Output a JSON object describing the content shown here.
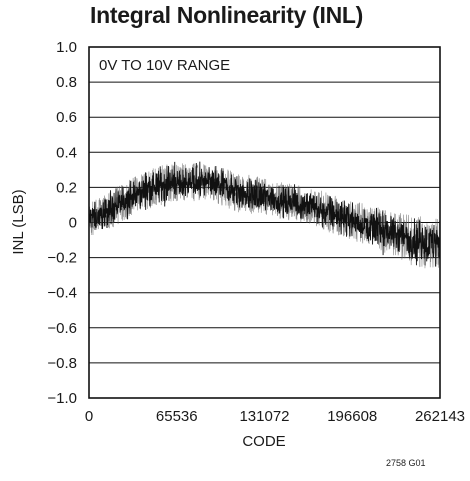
{
  "figure_id": "2758 G01",
  "chart_data": {
    "type": "line",
    "title": "Integral Nonlinearity (INL)",
    "xlabel": "CODE",
    "ylabel": "INL (LSB)",
    "annotation": "0V TO 10V RANGE",
    "xlim": [
      0,
      262143
    ],
    "ylim": [
      -1.0,
      1.0
    ],
    "x_ticks": [
      0,
      65536,
      131072,
      196608,
      262143
    ],
    "x_tick_labels": [
      "0",
      "65536",
      "131072",
      "196608",
      "262143"
    ],
    "y_ticks": [
      1.0,
      0.8,
      0.6,
      0.4,
      0.2,
      0,
      -0.2,
      -0.4,
      -0.6,
      -0.8,
      -1.0
    ],
    "y_tick_labels": [
      "1.0",
      "0.8",
      "0.6",
      "0.4",
      "0.2",
      "0",
      "−0.2",
      "−0.4",
      "−0.6",
      "−0.8",
      "−1.0"
    ],
    "grid": "horizontal",
    "series": [
      {
        "color": "#111111",
        "envelope": {
          "x": [
            0,
            10000,
            20000,
            32768,
            45000,
            55000,
            65536,
            80000,
            98304,
            110000,
            131072,
            145000,
            163840,
            180000,
            196608,
            210000,
            229376,
            245000,
            262143
          ],
          "upper": [
            0.12,
            0.15,
            0.2,
            0.26,
            0.31,
            0.33,
            0.34,
            0.34,
            0.32,
            0.29,
            0.25,
            0.23,
            0.2,
            0.17,
            0.13,
            0.1,
            0.06,
            0.04,
            0.03
          ],
          "lower": [
            -0.08,
            -0.06,
            -0.02,
            0.04,
            0.08,
            0.1,
            0.12,
            0.12,
            0.1,
            0.06,
            0.04,
            0.02,
            -0.01,
            -0.06,
            -0.1,
            -0.14,
            -0.2,
            -0.26,
            -0.28
          ]
        }
      }
    ]
  }
}
